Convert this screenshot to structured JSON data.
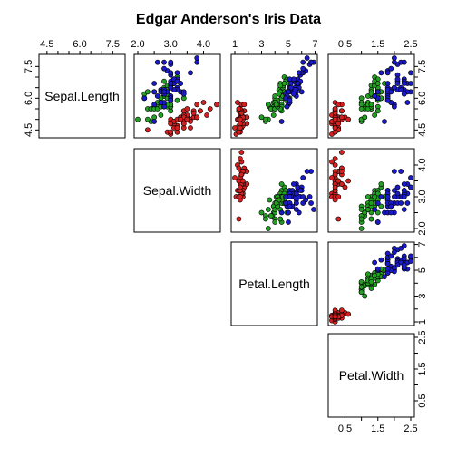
{
  "chart_data": {
    "type": "scatter",
    "title": "Edgar Anderson's Iris Data",
    "variables": [
      "Sepal.Length",
      "Sepal.Width",
      "Petal.Length",
      "Petal.Width"
    ],
    "axis_limits": {
      "Sepal.Length": [
        4.3,
        7.9
      ],
      "Sepal.Width": [
        2.0,
        4.4
      ],
      "Petal.Length": [
        1.0,
        6.9
      ],
      "Petal.Width": [
        0.1,
        2.5
      ]
    },
    "tick_values": {
      "Sepal.Length": [
        4.5,
        6.0,
        7.5
      ],
      "Sepal.Width": [
        2.0,
        3.0,
        4.0
      ],
      "Petal.Length": [
        1,
        3,
        5,
        7
      ],
      "Petal.Width": [
        0.5,
        1.5,
        2.5
      ]
    },
    "tick_labels": {
      "Sepal.Length": [
        "4.5",
        "6.0",
        "7.5"
      ],
      "Sepal.Width": [
        "2.0",
        "3.0",
        "4.0"
      ],
      "Petal.Length": [
        "1",
        "3",
        "5",
        "7"
      ],
      "Petal.Width": [
        "0.5",
        "1.5",
        "2.5"
      ]
    },
    "secondary_ticks": {
      "Sepal.Length": [
        5.0,
        5.5,
        6.5,
        7.0
      ],
      "Sepal.Width": [
        2.5,
        3.5
      ],
      "Petal.Length": [
        2,
        4,
        6
      ],
      "Petal.Width": [
        1.0,
        2.0
      ]
    },
    "grid": false,
    "legend": "none",
    "layout": "upper-triangle scatterplot matrix",
    "series_colors": {
      "setosa": "#d62020",
      "versicolor": "#22a022",
      "virginica": "#1a1ac8"
    },
    "series": [
      {
        "color": "#d62020",
        "sepal_length": [
          5.1,
          4.9,
          4.7,
          4.6,
          5.0,
          5.4,
          4.6,
          5.0,
          4.4,
          4.9,
          5.4,
          4.8,
          4.8,
          4.3,
          5.8,
          5.7,
          5.4,
          5.1,
          5.7,
          5.1,
          5.4,
          5.1,
          4.6,
          5.1,
          4.8,
          5.0,
          5.0,
          5.2,
          5.2,
          4.7,
          4.8,
          5.4,
          5.2,
          5.5,
          4.9,
          5.0,
          5.5,
          4.9,
          4.4,
          5.1,
          5.0,
          4.5,
          4.4,
          5.0,
          5.1,
          4.8,
          5.1,
          4.6,
          5.3,
          5.0
        ],
        "sepal_width": [
          3.5,
          3.0,
          3.2,
          3.1,
          3.6,
          3.9,
          3.4,
          3.4,
          2.9,
          3.1,
          3.7,
          3.4,
          3.0,
          3.0,
          4.0,
          4.4,
          3.9,
          3.5,
          3.8,
          3.8,
          3.4,
          3.7,
          3.6,
          3.3,
          3.4,
          3.0,
          3.4,
          3.5,
          3.4,
          3.2,
          3.1,
          3.4,
          4.1,
          4.2,
          3.1,
          3.2,
          3.5,
          3.6,
          3.0,
          3.4,
          3.5,
          2.3,
          3.2,
          3.5,
          3.8,
          3.0,
          3.8,
          3.2,
          3.7,
          3.3
        ],
        "petal_length": [
          1.4,
          1.4,
          1.3,
          1.5,
          1.4,
          1.7,
          1.4,
          1.5,
          1.4,
          1.5,
          1.5,
          1.6,
          1.4,
          1.1,
          1.2,
          1.5,
          1.3,
          1.4,
          1.7,
          1.5,
          1.7,
          1.5,
          1.0,
          1.7,
          1.9,
          1.6,
          1.6,
          1.5,
          1.4,
          1.6,
          1.6,
          1.5,
          1.5,
          1.4,
          1.5,
          1.2,
          1.3,
          1.4,
          1.3,
          1.5,
          1.3,
          1.3,
          1.3,
          1.6,
          1.9,
          1.4,
          1.6,
          1.4,
          1.5,
          1.4
        ],
        "petal_width": [
          0.2,
          0.2,
          0.2,
          0.2,
          0.2,
          0.4,
          0.3,
          0.2,
          0.2,
          0.1,
          0.2,
          0.2,
          0.1,
          0.1,
          0.2,
          0.4,
          0.4,
          0.3,
          0.3,
          0.3,
          0.2,
          0.4,
          0.2,
          0.5,
          0.2,
          0.2,
          0.4,
          0.2,
          0.2,
          0.2,
          0.2,
          0.4,
          0.1,
          0.2,
          0.2,
          0.2,
          0.2,
          0.1,
          0.2,
          0.2,
          0.3,
          0.3,
          0.2,
          0.6,
          0.4,
          0.3,
          0.2,
          0.2,
          0.2,
          0.2
        ]
      },
      {
        "color": "#22a022",
        "sepal_length": [
          7.0,
          6.4,
          6.9,
          5.5,
          6.5,
          5.7,
          6.3,
          4.9,
          6.6,
          5.2,
          5.0,
          5.9,
          6.0,
          6.1,
          5.6,
          6.7,
          5.6,
          5.8,
          6.2,
          5.6,
          5.9,
          6.1,
          6.3,
          6.1,
          6.4,
          6.6,
          6.8,
          6.7,
          6.0,
          5.7,
          5.5,
          5.5,
          5.8,
          6.0,
          5.4,
          6.0,
          6.7,
          6.3,
          5.6,
          5.5,
          5.5,
          6.1,
          5.8,
          5.0,
          5.6,
          5.7,
          5.7,
          6.2,
          5.1,
          5.7
        ],
        "sepal_width": [
          3.2,
          3.2,
          3.1,
          2.3,
          2.8,
          2.8,
          3.3,
          2.4,
          2.9,
          2.7,
          2.0,
          3.0,
          2.2,
          2.9,
          2.9,
          3.1,
          3.0,
          2.7,
          2.2,
          2.5,
          3.2,
          2.8,
          2.5,
          2.8,
          2.9,
          3.0,
          2.8,
          3.0,
          2.9,
          2.6,
          2.4,
          2.4,
          2.7,
          2.7,
          3.0,
          3.4,
          3.1,
          2.3,
          3.0,
          2.5,
          2.6,
          3.0,
          2.6,
          2.3,
          2.7,
          3.0,
          2.9,
          2.9,
          2.5,
          2.8
        ],
        "petal_length": [
          4.7,
          4.5,
          4.9,
          4.0,
          4.6,
          4.5,
          4.7,
          3.3,
          4.6,
          3.9,
          3.5,
          4.2,
          4.0,
          4.7,
          3.6,
          4.4,
          4.5,
          4.1,
          4.5,
          3.9,
          4.8,
          4.0,
          4.9,
          4.7,
          4.3,
          4.4,
          4.8,
          5.0,
          4.5,
          3.5,
          3.8,
          3.7,
          3.9,
          5.1,
          4.5,
          4.5,
          4.7,
          4.4,
          4.1,
          4.0,
          4.4,
          4.6,
          4.0,
          3.3,
          4.2,
          4.2,
          4.2,
          4.3,
          3.0,
          4.1
        ],
        "petal_width": [
          1.4,
          1.5,
          1.5,
          1.3,
          1.5,
          1.3,
          1.6,
          1.0,
          1.3,
          1.4,
          1.0,
          1.5,
          1.0,
          1.4,
          1.3,
          1.4,
          1.5,
          1.0,
          1.5,
          1.1,
          1.8,
          1.3,
          1.5,
          1.2,
          1.3,
          1.4,
          1.4,
          1.7,
          1.5,
          1.0,
          1.1,
          1.0,
          1.2,
          1.6,
          1.5,
          1.6,
          1.5,
          1.3,
          1.3,
          1.3,
          1.2,
          1.4,
          1.2,
          1.0,
          1.3,
          1.2,
          1.3,
          1.3,
          1.1,
          1.3
        ]
      },
      {
        "color": "#1a1ac8",
        "sepal_length": [
          6.3,
          5.8,
          7.1,
          6.3,
          6.5,
          7.6,
          4.9,
          7.3,
          6.7,
          7.2,
          6.5,
          6.4,
          6.8,
          5.7,
          5.8,
          6.4,
          6.5,
          7.7,
          7.7,
          6.0,
          6.9,
          5.6,
          7.7,
          6.3,
          6.7,
          7.2,
          6.2,
          6.1,
          6.4,
          7.2,
          7.4,
          7.9,
          6.4,
          6.3,
          6.1,
          7.7,
          6.3,
          6.4,
          6.0,
          6.9,
          6.7,
          6.9,
          5.8,
          6.8,
          6.7,
          6.7,
          6.3,
          6.5,
          6.2,
          5.9
        ],
        "sepal_width": [
          3.3,
          2.7,
          3.0,
          2.9,
          3.0,
          3.0,
          2.5,
          2.9,
          2.5,
          3.6,
          3.2,
          2.7,
          3.0,
          2.5,
          2.8,
          3.2,
          3.0,
          3.8,
          2.6,
          2.2,
          3.2,
          2.8,
          2.8,
          2.7,
          3.3,
          3.2,
          2.8,
          3.0,
          2.8,
          3.0,
          2.8,
          3.8,
          2.8,
          2.8,
          2.6,
          3.0,
          3.4,
          3.1,
          3.0,
          3.1,
          3.1,
          3.1,
          2.7,
          3.2,
          3.3,
          3.0,
          2.5,
          3.0,
          3.4,
          3.0
        ],
        "petal_length": [
          6.0,
          5.1,
          5.9,
          5.6,
          5.8,
          6.6,
          4.5,
          6.3,
          5.8,
          6.1,
          5.1,
          5.3,
          5.5,
          5.0,
          5.1,
          5.3,
          5.5,
          6.7,
          6.9,
          5.0,
          5.7,
          4.9,
          6.7,
          4.9,
          5.7,
          6.0,
          4.8,
          4.9,
          5.6,
          5.8,
          6.1,
          6.4,
          5.6,
          5.1,
          5.6,
          6.1,
          5.6,
          5.5,
          4.8,
          5.4,
          5.6,
          5.1,
          5.1,
          5.9,
          5.7,
          5.2,
          5.0,
          5.2,
          5.4,
          5.1
        ],
        "petal_width": [
          2.5,
          1.9,
          2.1,
          1.8,
          2.2,
          2.1,
          1.7,
          1.8,
          1.8,
          2.5,
          2.0,
          1.9,
          2.1,
          2.0,
          2.4,
          2.3,
          1.8,
          2.2,
          2.3,
          1.5,
          2.3,
          2.0,
          2.0,
          1.8,
          2.1,
          1.8,
          1.8,
          1.8,
          2.1,
          1.6,
          1.9,
          2.0,
          2.2,
          1.5,
          1.4,
          2.3,
          2.4,
          1.8,
          1.8,
          2.1,
          2.4,
          2.3,
          1.9,
          2.3,
          2.5,
          2.3,
          1.9,
          2.0,
          2.3,
          1.8
        ]
      }
    ]
  }
}
